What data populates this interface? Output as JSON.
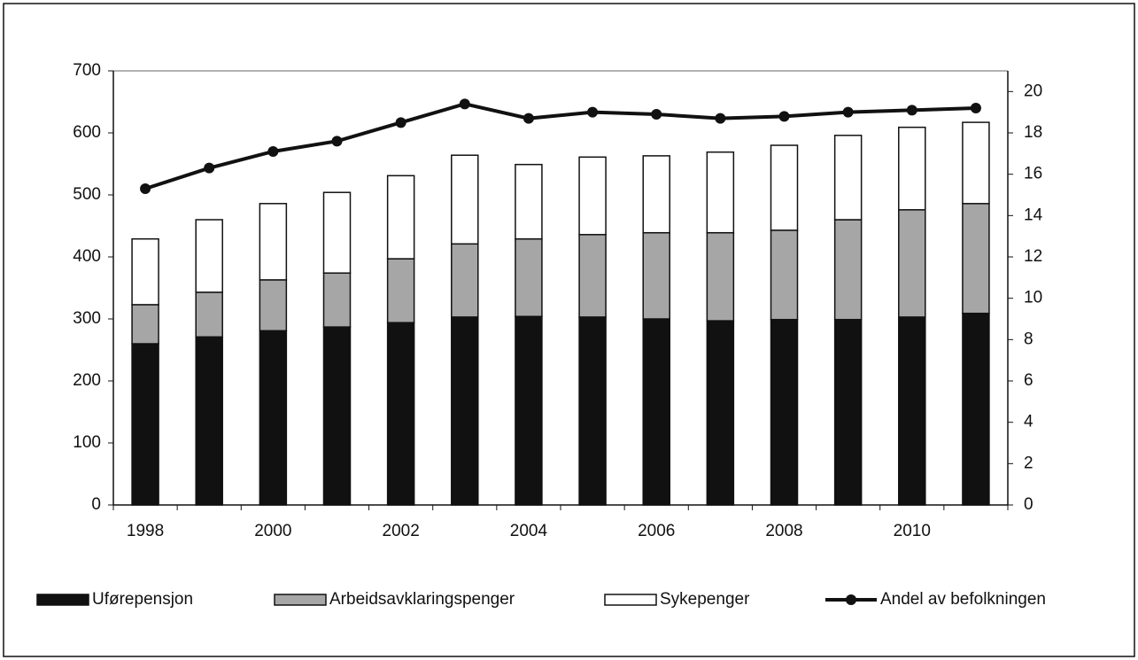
{
  "chart_data": {
    "type": "bar",
    "stacked": true,
    "categories": [
      "1998",
      null,
      "2000",
      null,
      "2002",
      null,
      "2004",
      null,
      "2006",
      null,
      "2008",
      null,
      "2010",
      null
    ],
    "series": [
      {
        "name": "Uførepensjon",
        "type": "bar",
        "color": "#111111",
        "values": [
          260,
          271,
          281,
          287,
          294,
          303,
          304,
          303,
          300,
          297,
          299,
          299,
          303,
          309
        ]
      },
      {
        "name": "Arbeidsavklaringspenger",
        "type": "bar",
        "color": "#a6a6a6",
        "values": [
          63,
          72,
          82,
          87,
          103,
          118,
          125,
          133,
          139,
          142,
          144,
          161,
          173,
          177
        ]
      },
      {
        "name": "Sykepenger",
        "type": "bar",
        "color": "#ffffff",
        "values": [
          106,
          117,
          123,
          130,
          134,
          143,
          120,
          125,
          124,
          130,
          137,
          136,
          133,
          131
        ]
      },
      {
        "name": "Andel av befolkningen",
        "type": "line",
        "axis": "y2",
        "color": "#111111",
        "values": [
          15.3,
          16.3,
          17.1,
          17.6,
          18.5,
          19.4,
          18.7,
          19.0,
          18.9,
          18.7,
          18.8,
          19.0,
          19.1,
          19.2
        ]
      }
    ],
    "ylim": [
      0,
      700
    ],
    "yticks": [
      0,
      100,
      200,
      300,
      400,
      500,
      600,
      700
    ],
    "y2lim": [
      0,
      21
    ],
    "y2ticks": [
      0,
      2,
      4,
      6,
      8,
      10,
      12,
      14,
      16,
      18,
      20
    ],
    "legend": "bottom",
    "grid": false
  }
}
